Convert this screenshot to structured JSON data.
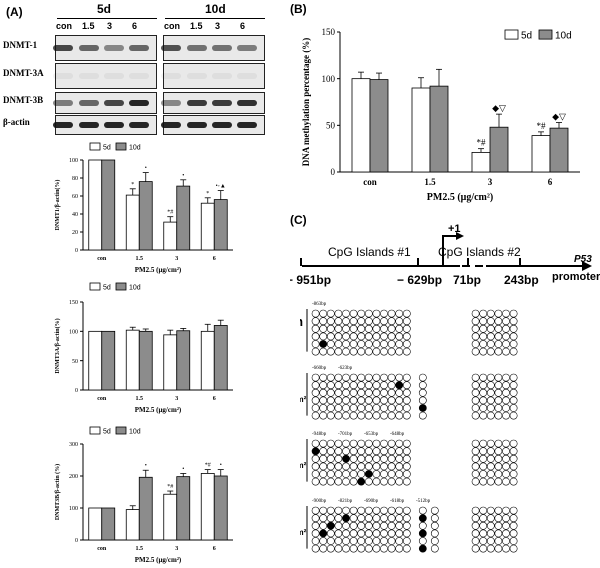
{
  "panel_labels": {
    "a": "(A)",
    "b": "(B)",
    "c": "(C)"
  },
  "western_blot": {
    "time_headers": [
      "5d",
      "10d"
    ],
    "lanes": [
      "con",
      "1.5",
      "3",
      "6"
    ],
    "rows": [
      "DNMT-1",
      "DNMT-3A",
      "DNMT-3B",
      "β-actin"
    ]
  },
  "chart_data": [
    {
      "type": "bar",
      "id": "dnmt1",
      "categories": [
        "con",
        "1.5",
        "3",
        "6"
      ],
      "series": [
        {
          "name": "5d",
          "values": [
            100,
            61,
            31,
            52
          ],
          "errors": [
            0,
            7,
            6,
            6
          ],
          "marks": [
            "",
            "*",
            "*#",
            "*"
          ]
        },
        {
          "name": "10d",
          "values": [
            100,
            76,
            71,
            56
          ],
          "errors": [
            0,
            10,
            7,
            10
          ],
          "marks": [
            "",
            "•",
            "•",
            "•◦▲"
          ]
        }
      ],
      "ylabel": "DNMT1/β-actin(%)",
      "xlabel": "PM2.5 (μg/cm²)",
      "ylim": [
        0,
        100
      ],
      "yticks": [
        0,
        20,
        40,
        60,
        80,
        100
      ]
    },
    {
      "type": "bar",
      "id": "dnmt3a",
      "categories": [
        "con",
        "1.5",
        "3",
        "6"
      ],
      "series": [
        {
          "name": "5d",
          "values": [
            100,
            102,
            94,
            100
          ],
          "errors": [
            0,
            5,
            8,
            12
          ],
          "marks": [
            "",
            "",
            "",
            ""
          ]
        },
        {
          "name": "10d",
          "values": [
            100,
            100,
            101,
            110
          ],
          "errors": [
            0,
            4,
            4,
            9
          ],
          "marks": [
            "",
            "",
            "",
            ""
          ]
        }
      ],
      "ylabel": "DNMT3A/β-actin(%)",
      "xlabel": "PM2.5 (μg/cm²)",
      "ylim": [
        0,
        150
      ],
      "yticks": [
        0,
        50,
        100,
        150
      ]
    },
    {
      "type": "bar",
      "id": "dnmt3b",
      "categories": [
        "con",
        "1.5",
        "3",
        "6"
      ],
      "series": [
        {
          "name": "5d",
          "values": [
            100,
            95,
            143,
            208
          ],
          "errors": [
            0,
            12,
            10,
            12
          ],
          "marks": [
            "",
            "",
            "*#",
            "*#"
          ]
        },
        {
          "name": "10d",
          "values": [
            100,
            196,
            198,
            200
          ],
          "errors": [
            0,
            22,
            10,
            20
          ],
          "marks": [
            "",
            "•",
            "•",
            "•"
          ]
        }
      ],
      "ylabel": "DNMT3B/β-actin (%)",
      "xlabel": "PM2.5 (μg/cm²)",
      "ylim": [
        0,
        300
      ],
      "yticks": [
        0,
        100,
        200,
        300
      ]
    },
    {
      "type": "bar",
      "id": "methylation",
      "categories": [
        "con",
        "1.5",
        "3",
        "6"
      ],
      "series": [
        {
          "name": "5d",
          "values": [
            100,
            90,
            21,
            39
          ],
          "errors": [
            7,
            11,
            4,
            4
          ],
          "marks": [
            "",
            "",
            "*#",
            "*#"
          ]
        },
        {
          "name": "10d",
          "values": [
            99,
            92,
            48,
            47
          ],
          "errors": [
            7,
            18,
            14,
            6
          ],
          "marks": [
            "",
            "",
            "◆▽",
            "◆▽"
          ]
        }
      ],
      "ylabel": "DNA methylation percentage (%)",
      "xlabel": "PM2.5 (μg/cm²)",
      "ylim": [
        0,
        150
      ],
      "yticks": [
        0,
        50,
        100,
        150
      ]
    }
  ],
  "gene_map": {
    "island1": "CpG Islands #1",
    "island2": "CpG Islands #2",
    "tss": "+1",
    "gene": "P53",
    "promoter": "promoter",
    "positions": [
      "− 951bp",
      "− 629bp",
      "71bp",
      "243bp"
    ]
  },
  "methylation_groups": [
    {
      "label": "con",
      "unit": "",
      "annotations": [
        "-863bp"
      ],
      "extra": 0,
      "dots": [
        [
          4,
          1
        ]
      ],
      "extra_dots": []
    },
    {
      "label": "1.5",
      "unit": "μg/cm²",
      "annotations": [
        "-660bp",
        "-623bp"
      ],
      "extra": 1,
      "dots": [
        [
          1,
          11
        ]
      ],
      "extra_dots": [
        [
          4,
          0
        ]
      ]
    },
    {
      "label": "3",
      "unit": "μg/cm²",
      "annotations": [
        "-948bp",
        "-701bp",
        "-653bp",
        "-648bp"
      ],
      "extra": 0,
      "dots": [
        [
          1,
          0
        ],
        [
          2,
          4
        ],
        [
          4,
          7
        ],
        [
          5,
          6
        ]
      ],
      "extra_dots": []
    },
    {
      "label": "6",
      "unit": "μg/cm²",
      "annotations": [
        "-900bp",
        "-821bp",
        "-690bp",
        "-618bp",
        "-512bp"
      ],
      "extra": 2,
      "dots": [
        [
          1,
          4
        ],
        [
          2,
          2
        ],
        [
          3,
          1
        ]
      ],
      "extra_dots": [
        [
          1,
          0
        ],
        [
          3,
          0
        ],
        [
          5,
          0
        ]
      ]
    }
  ]
}
